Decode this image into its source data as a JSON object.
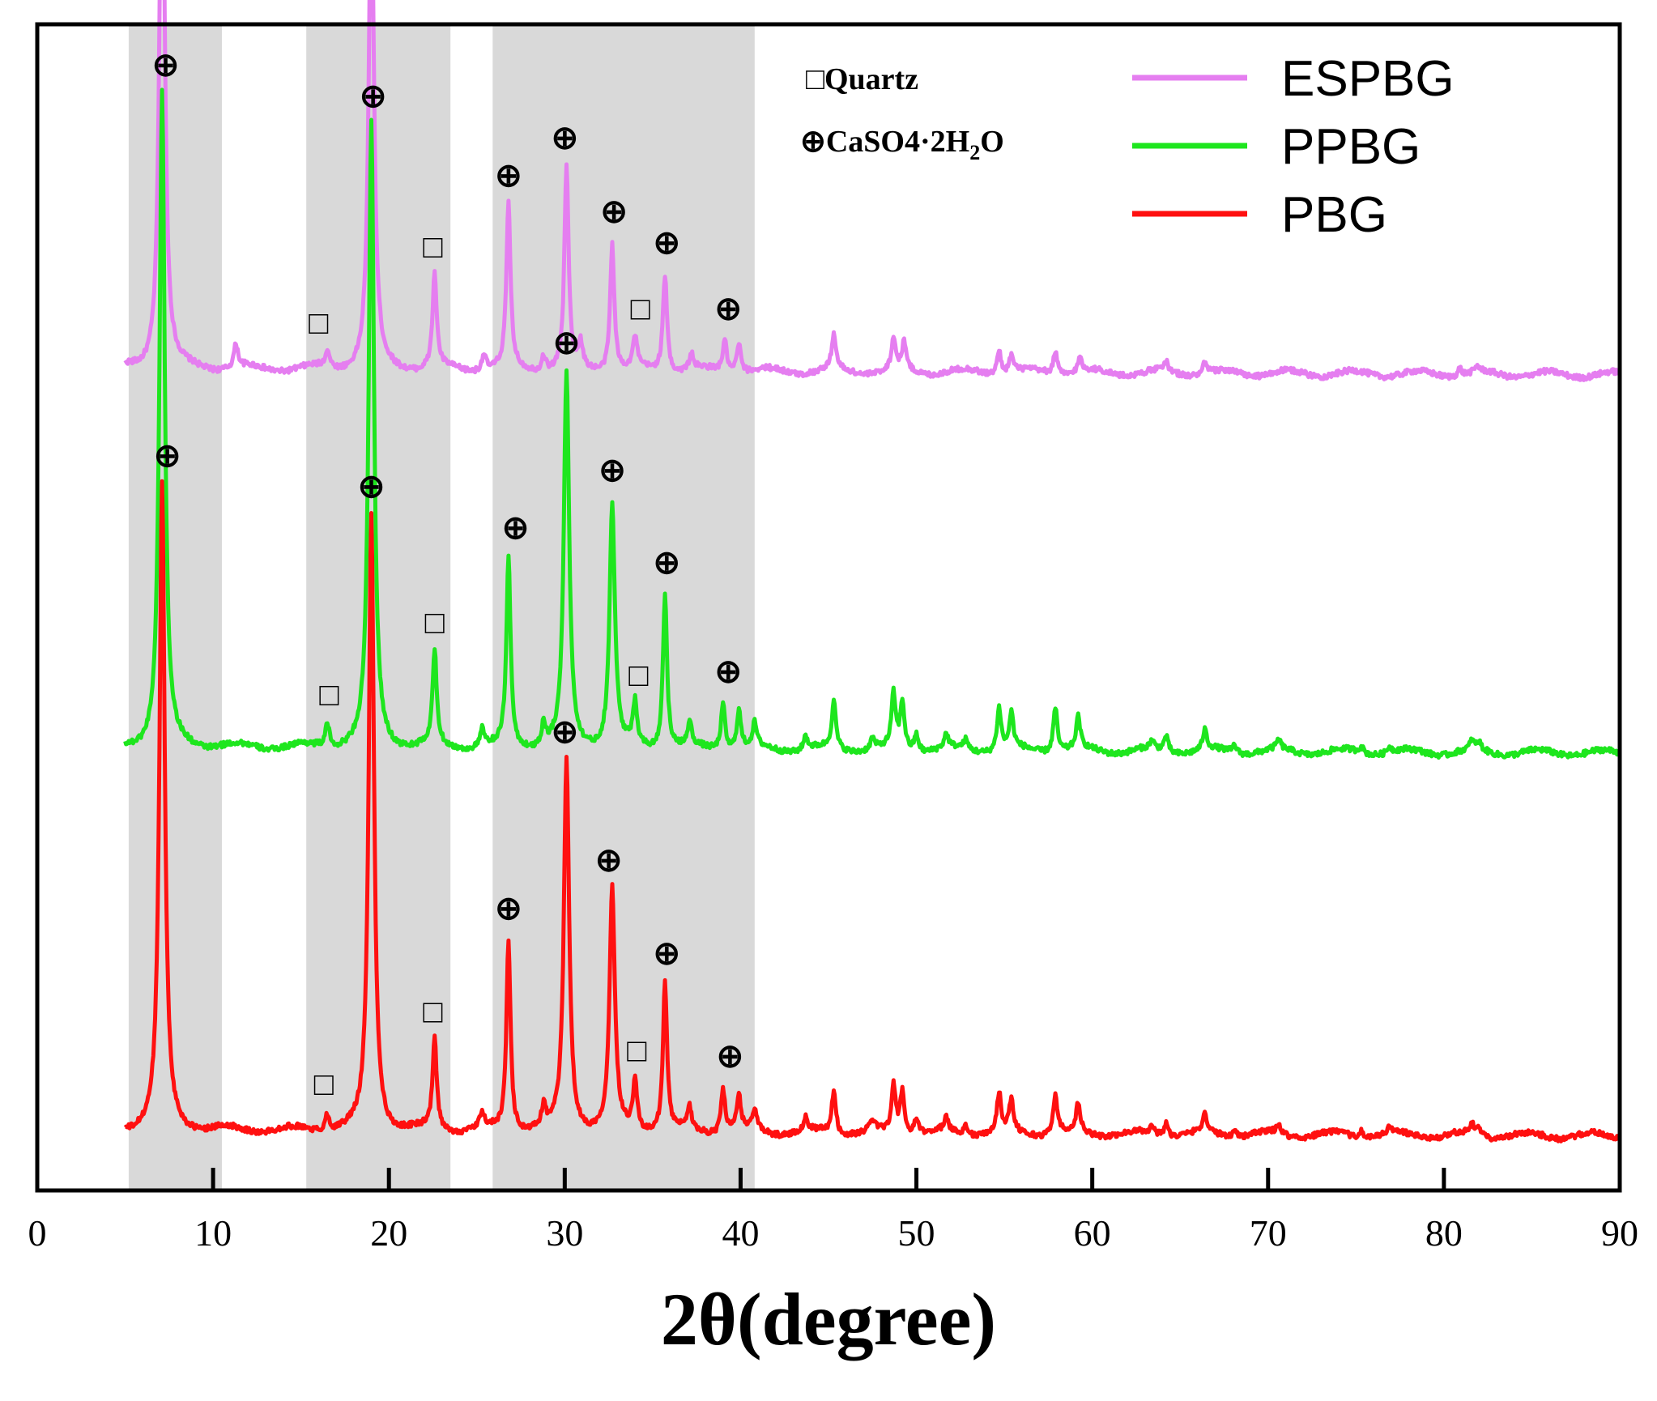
{
  "chart_data": {
    "type": "line",
    "title": "",
    "xlabel": "2θ(degree)",
    "ylabel": "",
    "xlim": [
      0,
      90
    ],
    "xticks": [
      0,
      10,
      20,
      30,
      40,
      50,
      60,
      70,
      80,
      90
    ],
    "xtick_labels": [
      "0",
      "10",
      "20",
      "30",
      "40",
      "50",
      "60",
      "70",
      "80",
      "90"
    ],
    "highlight_ranges": [
      [
        5.2,
        10.5
      ],
      [
        15.3,
        23.5
      ],
      [
        25.9,
        40.8
      ]
    ],
    "phase_legend": [
      {
        "symbol": "□",
        "label": "Quartz"
      },
      {
        "symbol": "⊕",
        "label": "CaSO4·2H",
        "sub": "2",
        "suffix": "O"
      }
    ],
    "legend_position": "top-right",
    "series": [
      {
        "name": "ESPBG",
        "color": "#e57ef0",
        "peaks": [
          [
            7.1,
            760
          ],
          [
            11.3,
            30
          ],
          [
            16.5,
            22
          ],
          [
            19.0,
            630
          ],
          [
            22.6,
            120
          ],
          [
            25.4,
            22
          ],
          [
            26.8,
            210
          ],
          [
            28.8,
            20
          ],
          [
            30.1,
            260
          ],
          [
            30.9,
            30
          ],
          [
            32.7,
            165
          ],
          [
            34.0,
            40
          ],
          [
            35.7,
            125
          ],
          [
            37.2,
            20
          ],
          [
            39.1,
            40
          ],
          [
            39.9,
            38
          ],
          [
            45.3,
            45
          ],
          [
            48.7,
            40
          ],
          [
            49.3,
            36
          ],
          [
            54.7,
            30
          ],
          [
            55.4,
            22
          ],
          [
            57.9,
            30
          ],
          [
            59.3,
            18
          ],
          [
            64.2,
            12
          ],
          [
            66.4,
            14
          ],
          [
            80.9,
            10
          ],
          [
            81.9,
            8
          ]
        ],
        "markers": [
          {
            "x": 7.4,
            "symbol": "⊕"
          },
          {
            "x": 16.0,
            "symbol": "□"
          },
          {
            "x": 19.1,
            "symbol": "⊕"
          },
          {
            "x": 22.5,
            "symbol": "□"
          },
          {
            "x": 26.8,
            "symbol": "⊕"
          },
          {
            "x": 30.0,
            "symbol": "⊕"
          },
          {
            "x": 32.8,
            "symbol": "⊕"
          },
          {
            "x": 34.3,
            "symbol": "□"
          },
          {
            "x": 35.8,
            "symbol": "⊕"
          },
          {
            "x": 39.3,
            "symbol": "⊕"
          }
        ]
      },
      {
        "name": "PPBG",
        "color": "#1ee61e",
        "peaks": [
          [
            7.1,
            840
          ],
          [
            16.5,
            30
          ],
          [
            19.0,
            800
          ],
          [
            22.6,
            120
          ],
          [
            25.3,
            22
          ],
          [
            26.8,
            245
          ],
          [
            28.8,
            28
          ],
          [
            30.1,
            480
          ],
          [
            32.7,
            315
          ],
          [
            34.0,
            55
          ],
          [
            35.7,
            200
          ],
          [
            37.1,
            30
          ],
          [
            39.0,
            60
          ],
          [
            39.9,
            50
          ],
          [
            40.8,
            30
          ],
          [
            43.7,
            18
          ],
          [
            45.3,
            60
          ],
          [
            47.5,
            14
          ],
          [
            48.7,
            68
          ],
          [
            49.2,
            60
          ],
          [
            50.0,
            22
          ],
          [
            51.7,
            18
          ],
          [
            52.8,
            12
          ],
          [
            54.7,
            55
          ],
          [
            55.4,
            45
          ],
          [
            57.9,
            58
          ],
          [
            59.2,
            40
          ],
          [
            63.4,
            10
          ],
          [
            64.2,
            20
          ],
          [
            66.4,
            25
          ],
          [
            68.1,
            10
          ],
          [
            70.6,
            12
          ],
          [
            75.3,
            8
          ],
          [
            76.9,
            8
          ],
          [
            81.6,
            12
          ],
          [
            82.0,
            10
          ]
        ],
        "markers": [
          {
            "x": 7.3,
            "symbol": "⊕"
          },
          {
            "x": 16.6,
            "symbol": "□"
          },
          {
            "x": 19.1,
            "symbol": "⊕"
          },
          {
            "x": 22.6,
            "symbol": "□"
          },
          {
            "x": 27.2,
            "symbol": "⊕"
          },
          {
            "x": 30.1,
            "symbol": "⊕"
          },
          {
            "x": 32.7,
            "symbol": "⊕"
          },
          {
            "x": 34.2,
            "symbol": "□"
          },
          {
            "x": 35.8,
            "symbol": "⊕"
          },
          {
            "x": 39.3,
            "symbol": "⊕"
          }
        ]
      },
      {
        "name": "PBG",
        "color": "#ff1010",
        "peaks": [
          [
            7.1,
            830
          ],
          [
            16.5,
            22
          ],
          [
            19.0,
            790
          ],
          [
            22.6,
            115
          ],
          [
            25.3,
            20
          ],
          [
            26.8,
            245
          ],
          [
            28.8,
            25
          ],
          [
            30.1,
            475
          ],
          [
            32.7,
            310
          ],
          [
            34.0,
            65
          ],
          [
            35.7,
            190
          ],
          [
            37.1,
            28
          ],
          [
            39.0,
            58
          ],
          [
            39.9,
            45
          ],
          [
            40.8,
            28
          ],
          [
            43.7,
            16
          ],
          [
            45.3,
            55
          ],
          [
            47.5,
            14
          ],
          [
            48.7,
            60
          ],
          [
            49.2,
            55
          ],
          [
            50.0,
            20
          ],
          [
            51.7,
            16
          ],
          [
            52.8,
            12
          ],
          [
            54.7,
            50
          ],
          [
            55.4,
            40
          ],
          [
            57.9,
            52
          ],
          [
            59.2,
            36
          ],
          [
            63.4,
            10
          ],
          [
            64.2,
            18
          ],
          [
            66.4,
            24
          ],
          [
            68.1,
            10
          ],
          [
            70.6,
            12
          ],
          [
            75.3,
            8
          ],
          [
            76.9,
            8
          ],
          [
            81.6,
            12
          ],
          [
            82.0,
            10
          ]
        ],
        "markers": [
          {
            "x": 7.4,
            "symbol": "⊕"
          },
          {
            "x": 16.3,
            "symbol": "□"
          },
          {
            "x": 19.0,
            "symbol": "⊕"
          },
          {
            "x": 22.5,
            "symbol": "□"
          },
          {
            "x": 26.8,
            "symbol": "⊕"
          },
          {
            "x": 30.0,
            "symbol": "⊕"
          },
          {
            "x": 32.5,
            "symbol": "⊕"
          },
          {
            "x": 34.1,
            "symbol": "□"
          },
          {
            "x": 35.8,
            "symbol": "⊕"
          },
          {
            "x": 39.4,
            "symbol": "⊕"
          }
        ]
      }
    ]
  },
  "colors": {
    "highlight": "#d9d9d9",
    "axis": "#000000",
    "background": "#ffffff"
  }
}
